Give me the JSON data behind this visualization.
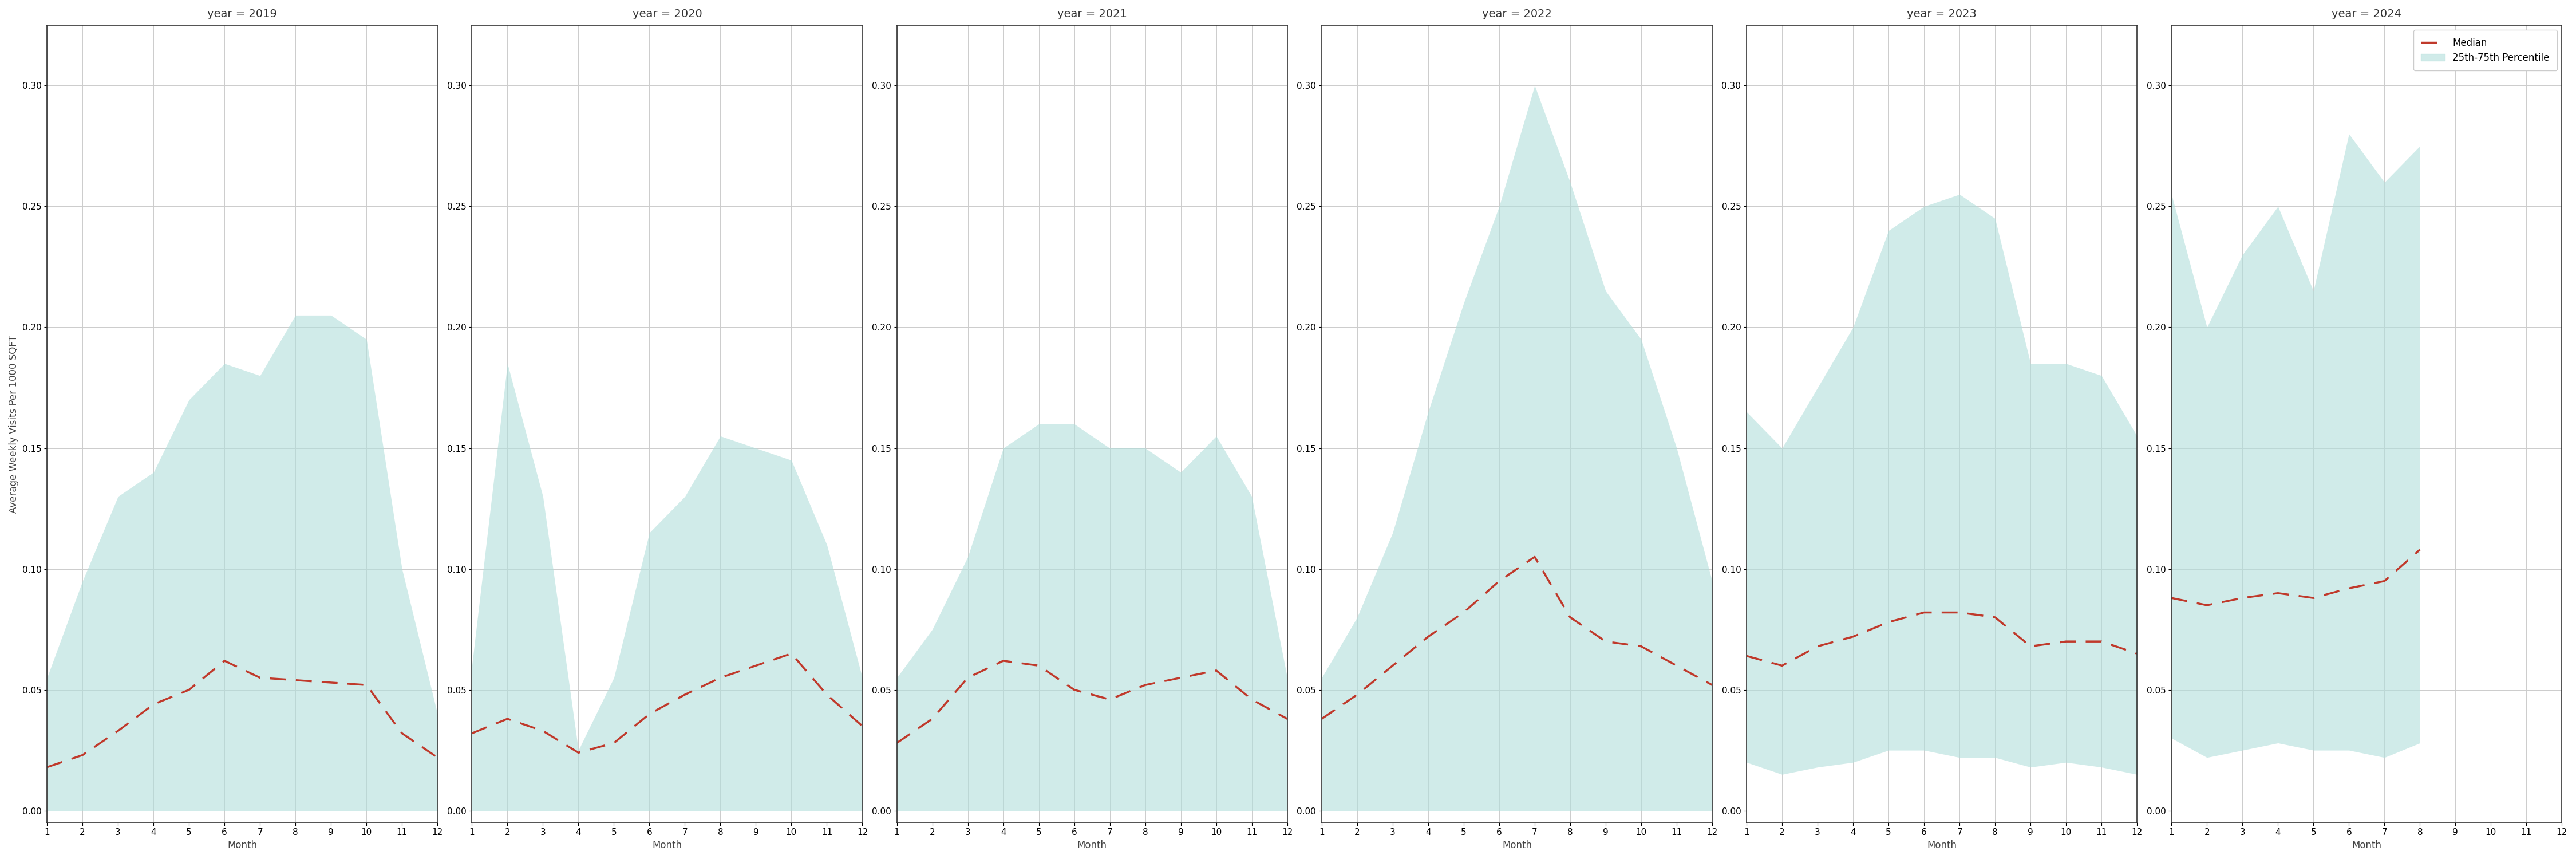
{
  "years": [
    2019,
    2020,
    2021,
    2022,
    2023,
    2024
  ],
  "months": [
    1,
    2,
    3,
    4,
    5,
    6,
    7,
    8,
    9,
    10,
    11,
    12
  ],
  "ylabel": "Average Weekly Visits Per 1000 SQFT",
  "xlabel": "Month",
  "ylim": [
    -0.005,
    0.325
  ],
  "yticks": [
    0.0,
    0.05,
    0.1,
    0.15,
    0.2,
    0.25,
    0.3
  ],
  "fill_color": "#b2dfdb",
  "fill_alpha": 0.6,
  "line_color": "#c0392b",
  "legend_median": "Median",
  "legend_band": "25th-75th Percentile",
  "median": {
    "2019": [
      0.018,
      0.023,
      0.033,
      0.044,
      0.05,
      0.062,
      0.055,
      0.054,
      0.053,
      0.052,
      0.032,
      0.022
    ],
    "2020": [
      0.032,
      0.038,
      0.033,
      0.024,
      0.028,
      0.04,
      0.048,
      0.055,
      0.06,
      0.065,
      0.048,
      0.035
    ],
    "2021": [
      0.028,
      0.038,
      0.055,
      0.062,
      0.06,
      0.05,
      0.046,
      0.052,
      0.055,
      0.058,
      0.046,
      0.038
    ],
    "2022": [
      0.038,
      0.048,
      0.06,
      0.072,
      0.082,
      0.095,
      0.105,
      0.08,
      0.07,
      0.068,
      0.06,
      0.052
    ],
    "2023": [
      0.064,
      0.06,
      0.068,
      0.072,
      0.078,
      0.082,
      0.082,
      0.08,
      0.068,
      0.07,
      0.07,
      0.065
    ],
    "2024": [
      0.088,
      0.085,
      0.088,
      0.09,
      0.088,
      0.092,
      0.095,
      0.108,
      null,
      null,
      null,
      null
    ]
  },
  "upper": {
    "2019": [
      0.055,
      0.095,
      0.13,
      0.14,
      0.17,
      0.185,
      0.18,
      0.205,
      0.205,
      0.195,
      0.1,
      0.04
    ],
    "2020": [
      0.06,
      0.185,
      0.13,
      0.025,
      0.055,
      0.115,
      0.13,
      0.155,
      0.15,
      0.145,
      0.11,
      0.055
    ],
    "2021": [
      0.055,
      0.075,
      0.105,
      0.15,
      0.16,
      0.16,
      0.15,
      0.15,
      0.14,
      0.155,
      0.13,
      0.055
    ],
    "2022": [
      0.055,
      0.08,
      0.115,
      0.165,
      0.21,
      0.25,
      0.3,
      0.26,
      0.215,
      0.195,
      0.15,
      0.095
    ],
    "2023": [
      0.165,
      0.15,
      0.175,
      0.2,
      0.24,
      0.25,
      0.255,
      0.245,
      0.185,
      0.185,
      0.18,
      0.155
    ],
    "2024": [
      0.255,
      0.2,
      0.23,
      0.25,
      0.215,
      0.28,
      0.26,
      0.275,
      null,
      null,
      null,
      null
    ]
  },
  "lower": {
    "2019": [
      0.0,
      0.0,
      0.0,
      0.0,
      0.0,
      0.0,
      0.0,
      0.0,
      0.0,
      0.0,
      0.0,
      0.0
    ],
    "2020": [
      0.0,
      0.0,
      0.0,
      0.0,
      0.0,
      0.0,
      0.0,
      0.0,
      0.0,
      0.0,
      0.0,
      0.0
    ],
    "2021": [
      0.0,
      0.0,
      0.0,
      0.0,
      0.0,
      0.0,
      0.0,
      0.0,
      0.0,
      0.0,
      0.0,
      0.0
    ],
    "2022": [
      0.0,
      0.0,
      0.0,
      0.0,
      0.0,
      0.0,
      0.0,
      0.0,
      0.0,
      0.0,
      0.0,
      0.0
    ],
    "2023": [
      0.02,
      0.015,
      0.018,
      0.02,
      0.025,
      0.025,
      0.022,
      0.022,
      0.018,
      0.02,
      0.018,
      0.015
    ],
    "2024": [
      0.03,
      0.022,
      0.025,
      0.028,
      0.025,
      0.025,
      0.022,
      0.028,
      null,
      null,
      null,
      null
    ]
  },
  "title_fontsize": 14,
  "axis_label_fontsize": 12,
  "tick_fontsize": 11
}
